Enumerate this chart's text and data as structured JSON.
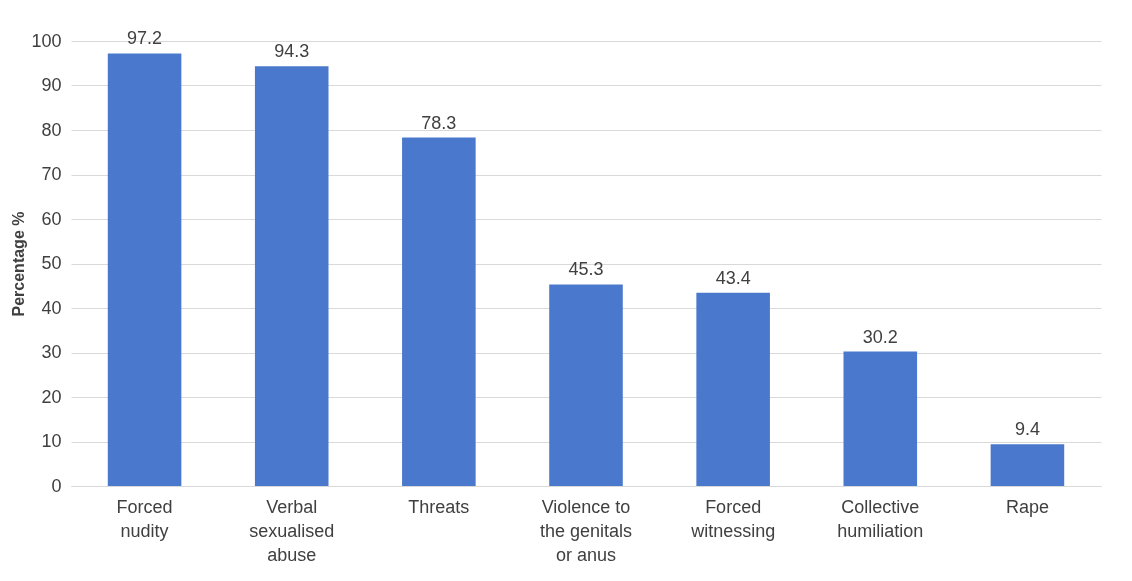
{
  "chart_data": {
    "type": "bar",
    "ylabel": "Percentage %",
    "categories": [
      "Forced nudity",
      "Verbal sexualised abuse",
      "Threats",
      "Violence to the genitals or anus",
      "Forced witnessing",
      "Collective humiliation",
      "Rape"
    ],
    "values": [
      97.2,
      94.3,
      78.3,
      45.3,
      43.4,
      30.2,
      9.4
    ],
    "color": "#4a78cc",
    "ylim": [
      0,
      100
    ],
    "yticks": [
      0,
      10,
      20,
      30,
      40,
      50,
      60,
      70,
      80,
      90,
      100
    ],
    "grid": "y",
    "data_labels": true
  }
}
